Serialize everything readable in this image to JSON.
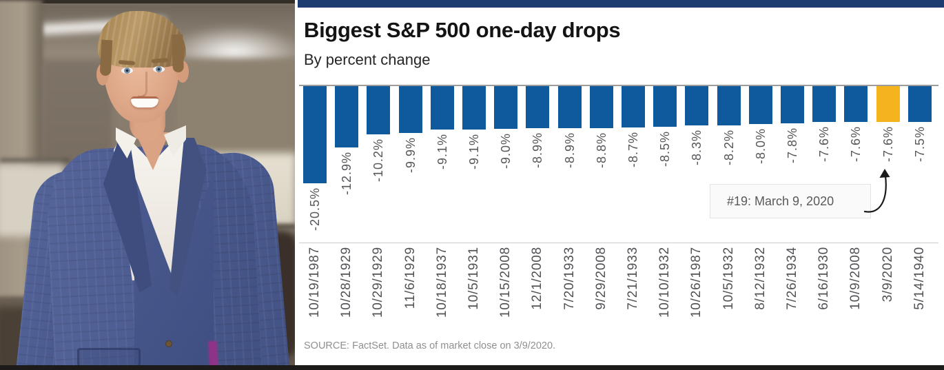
{
  "frame": {
    "accent_bar_color": "#1d3b70",
    "bottom_bar_color": "#1c1b19"
  },
  "photo": {
    "description": "Smiling man with short light-brown hair wearing a blue plaid suit jacket, matching vest and open-collared white shirt, standing in a blurred office"
  },
  "chart": {
    "title": "Biggest S&P 500 one-day drops",
    "subtitle": "By percent change",
    "annotation": "#19: March 9, 2020",
    "source": "SOURCE: FactSet. Data as of market close on 3/9/2020."
  },
  "chart_data": {
    "type": "bar",
    "title": "Biggest S&P 500 one-day drops",
    "subtitle": "By percent change",
    "categories": [
      "10/19/1987",
      "10/28/1929",
      "10/29/1929",
      "11/6/1929",
      "10/18/1937",
      "10/5/1931",
      "10/15/2008",
      "12/1/2008",
      "7/20/1933",
      "9/29/2008",
      "7/21/1933",
      "10/10/1932",
      "10/26/1987",
      "10/5/1932",
      "8/12/1932",
      "7/26/1934",
      "6/16/1930",
      "10/9/2008",
      "3/9/2020",
      "5/14/1940"
    ],
    "values": [
      -20.5,
      -12.9,
      -10.2,
      -9.9,
      -9.1,
      -9.1,
      -9.0,
      -8.9,
      -8.9,
      -8.8,
      -8.7,
      -8.5,
      -8.3,
      -8.2,
      -8.0,
      -7.8,
      -7.6,
      -7.6,
      -7.6,
      -7.5
    ],
    "bar_labels": [
      "-20.5%",
      "-12.9%",
      "-10.2%",
      "-9.9%",
      "-9.1%",
      "-9.1%",
      "-9.0%",
      "-8.9%",
      "-8.9%",
      "-8.8%",
      "-8.7%",
      "-8.5%",
      "-8.3%",
      "-8.2%",
      "-8.0%",
      "-7.8%",
      "-7.6%",
      "-7.6%",
      "-7.6%",
      "-7.5%"
    ],
    "bar_color": "#0e5a9c",
    "label_color": "#55565a",
    "highlight": {
      "index": 18,
      "category": "3/9/2020",
      "value": -7.6,
      "color": "#f5b41d",
      "callout": "#19: March 9, 2020"
    },
    "baseline": 0,
    "ylim": [
      -21,
      0
    ],
    "gridlines": false,
    "legend": "none",
    "value_label_rotation": -90,
    "xlabel": "",
    "ylabel": "",
    "source": "SOURCE: FactSet. Data as of market close on 3/9/2020."
  }
}
